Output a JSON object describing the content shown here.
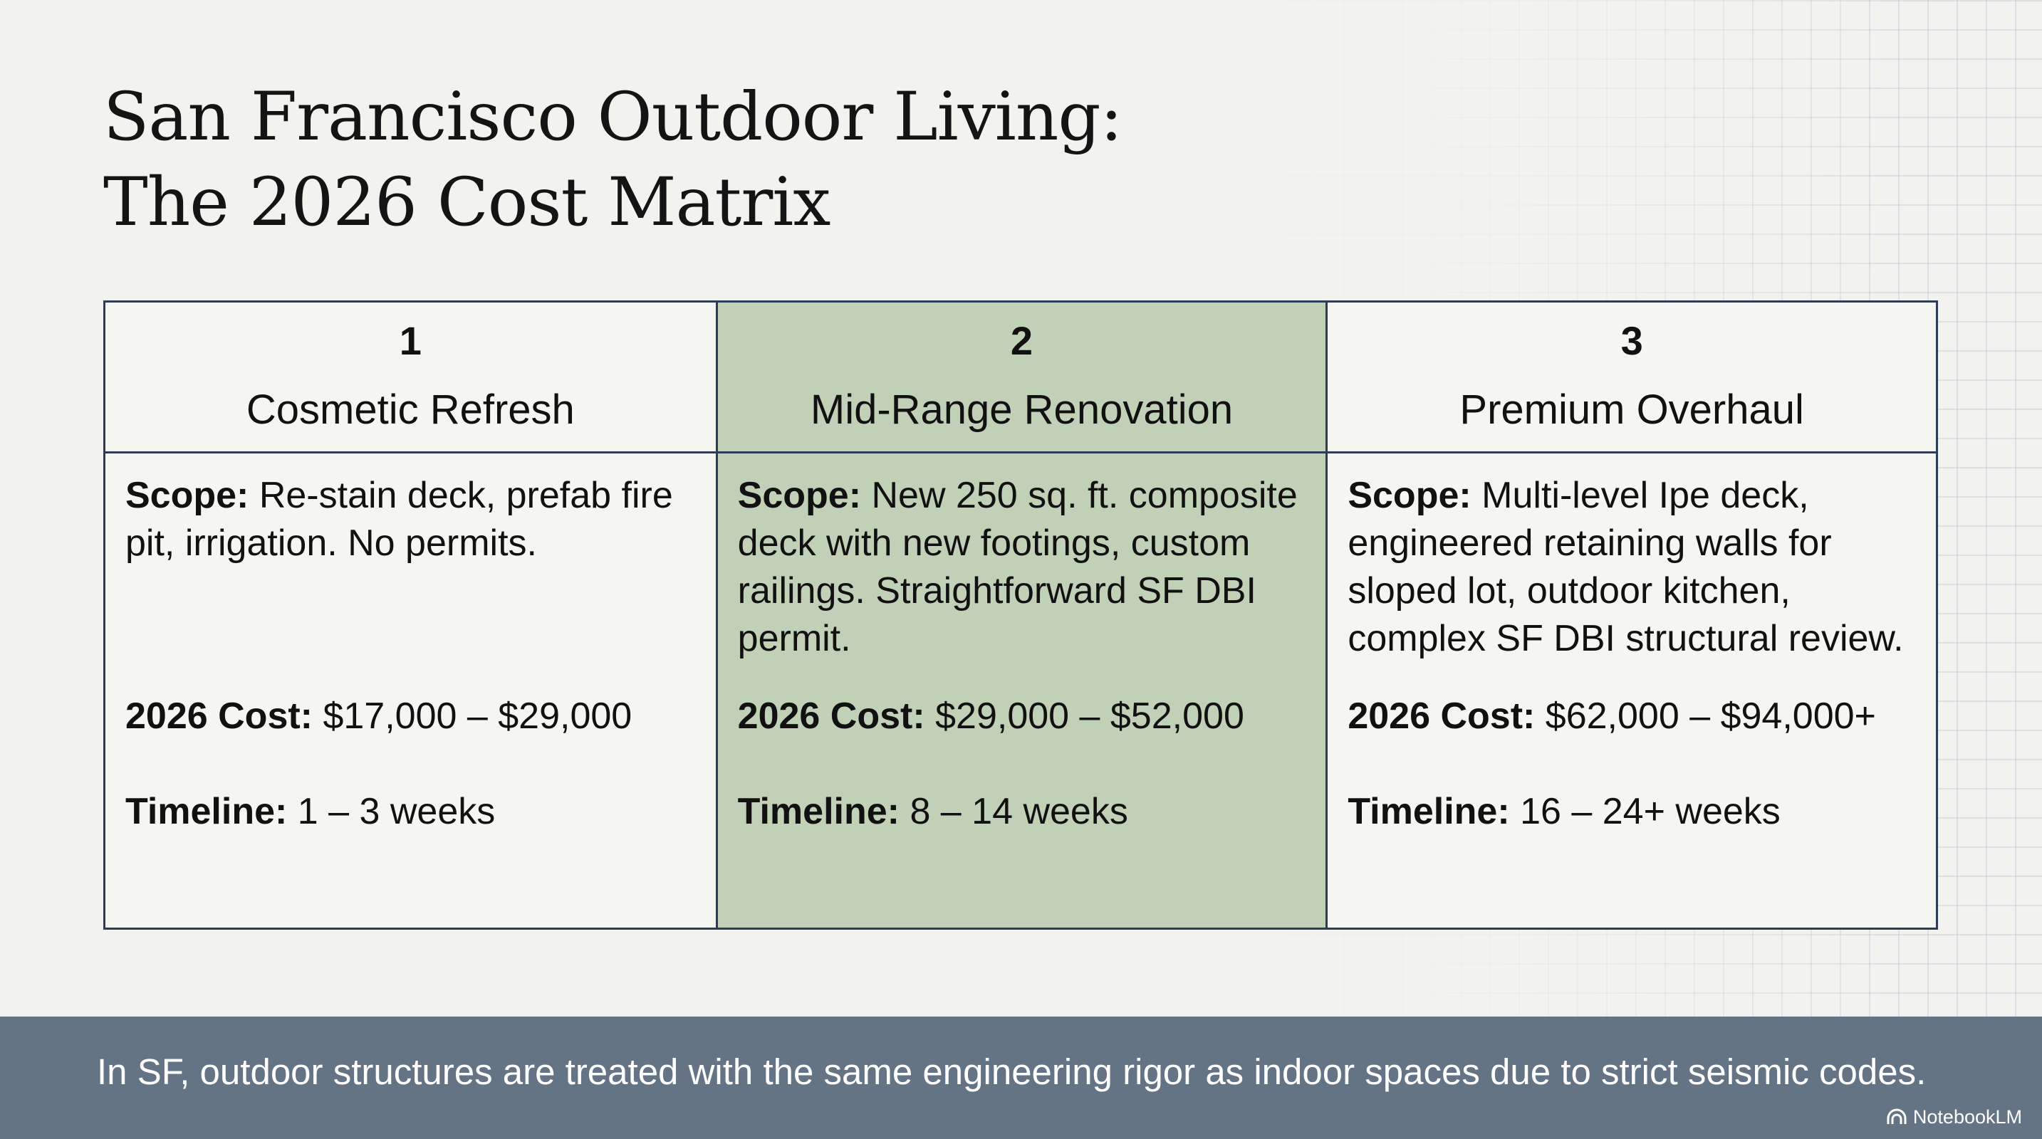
{
  "title": {
    "line1": "San Francisco Outdoor Living:",
    "line2": "The 2026 Cost Matrix"
  },
  "columns": [
    {
      "number": "1",
      "name": "Cosmetic Refresh",
      "highlighted": false,
      "scope_label": "Scope:",
      "scope": "Re-stain deck, prefab fire pit, irrigation. No permits.",
      "cost_label": "2026 Cost:",
      "cost": "$17,000 – $29,000",
      "timeline_label": "Timeline:",
      "timeline": "1 – 3 weeks"
    },
    {
      "number": "2",
      "name": "Mid-Range Renovation",
      "highlighted": true,
      "scope_label": "Scope:",
      "scope": "New 250 sq. ft. composite deck with new footings, custom railings. Straightforward SF DBI permit.",
      "cost_label": "2026 Cost:",
      "cost": "$29,000 – $52,000",
      "timeline_label": "Timeline:",
      "timeline": "8 – 14 weeks"
    },
    {
      "number": "3",
      "name": "Premium Overhaul",
      "highlighted": false,
      "scope_label": "Scope:",
      "scope": "Multi-level Ipe deck, engineered retaining walls for sloped lot, outdoor kitchen, complex SF DBI structural review.",
      "cost_label": "2026 Cost:",
      "cost": "$62,000 – $94,000+",
      "timeline_label": "Timeline:",
      "timeline": "16 – 24+ weeks"
    }
  ],
  "footer": {
    "text": "In SF, outdoor structures are treated with the same engineering rigor as indoor spaces due to strict seismic codes.",
    "brand": "NotebookLM",
    "brand_icon": "notebooklm-logo-icon"
  },
  "colors": {
    "background": "#f2f2ef",
    "grid_line": "#c8cede",
    "border": "#2d3d57",
    "highlight": "#c0d1b7",
    "footer_bar": "#647485"
  }
}
